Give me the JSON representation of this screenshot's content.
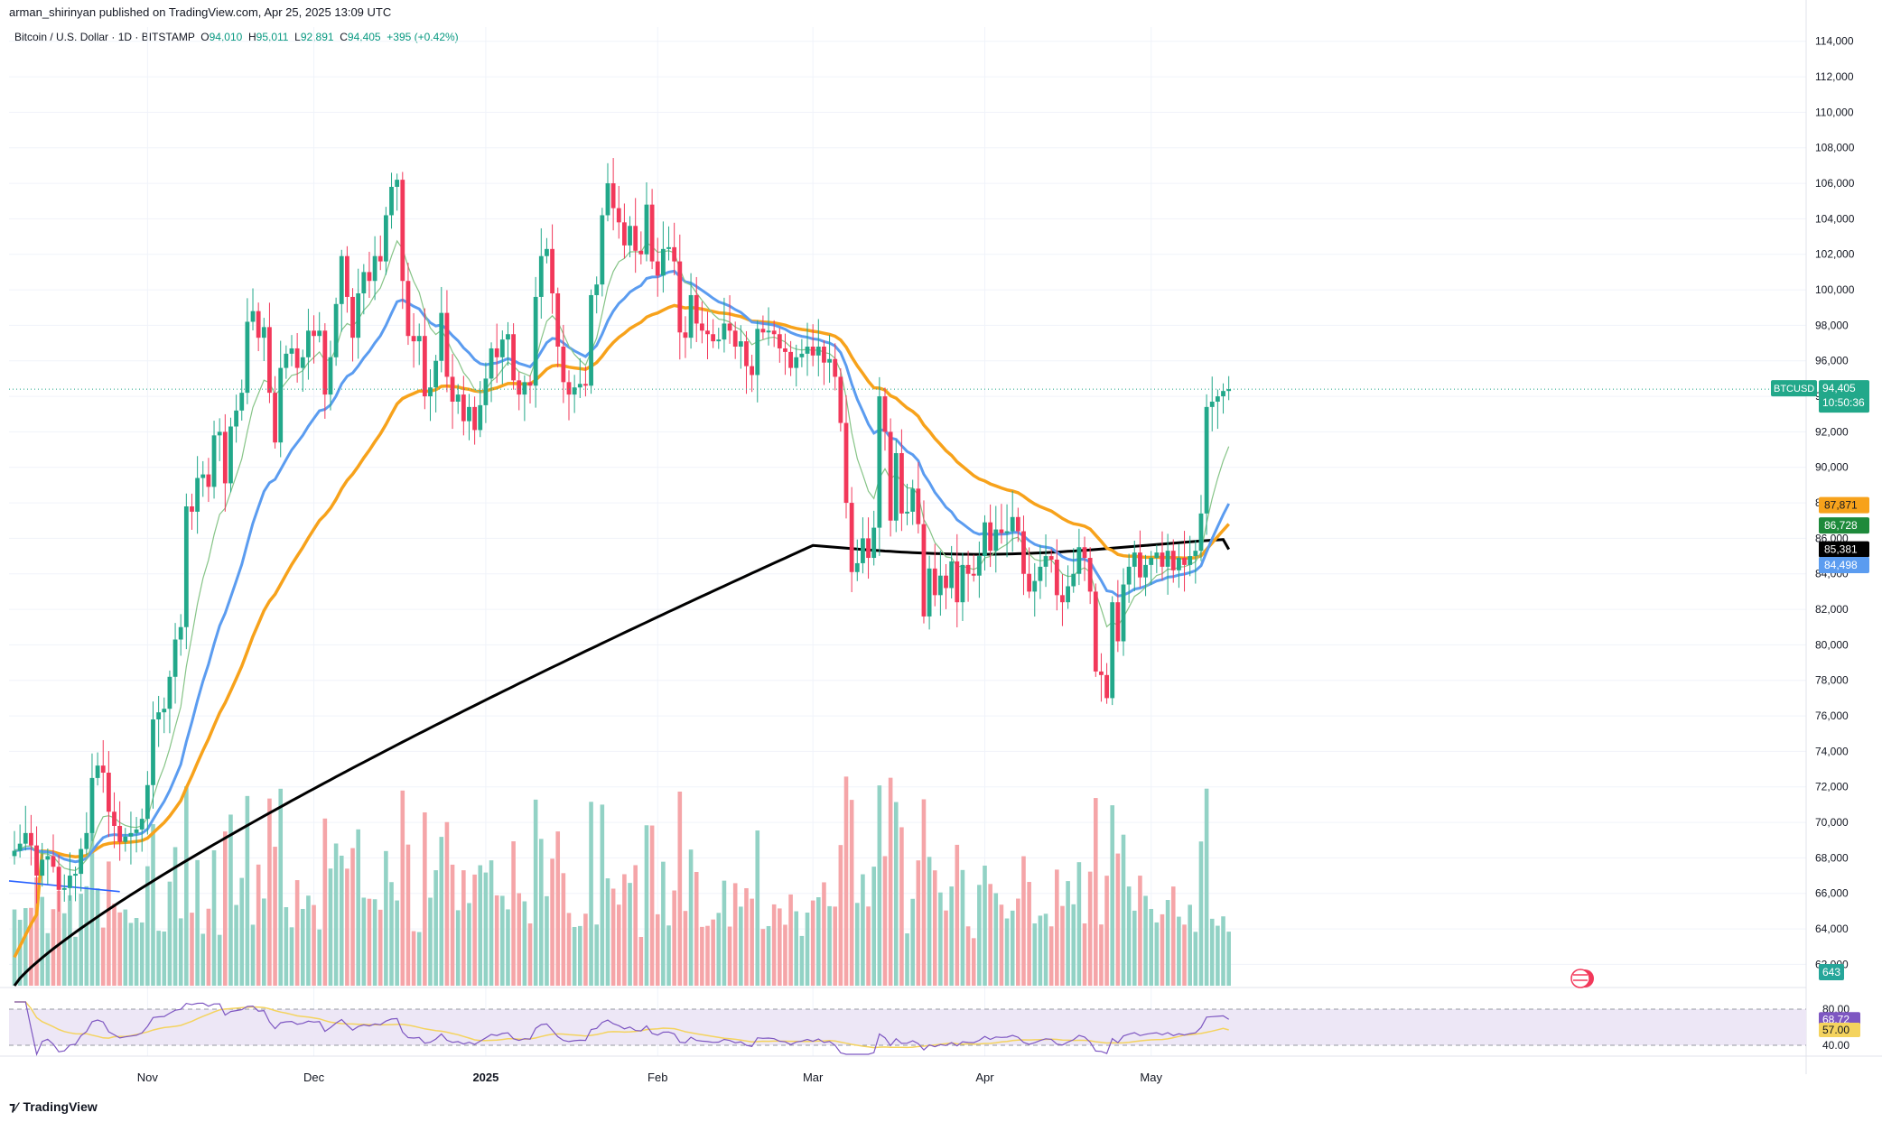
{
  "header": {
    "publisher": "arman_shirinyan published on TradingView.com, Apr 25, 2025 13:09 UTC"
  },
  "symbol_bar": {
    "name": "Bitcoin / U.S. Dollar · 1D · BITSTAMP",
    "open_label": "O",
    "open": "94,010",
    "high_label": "H",
    "high": "95,011",
    "low_label": "L",
    "low": "92,891",
    "close_label": "C",
    "close": "94,405",
    "change": "+395 (+0.42%)"
  },
  "price_tag": {
    "ticker": "BTCUSD",
    "price": "94,405",
    "countdown": "10:50:36"
  },
  "ma_tags": [
    {
      "value": "87,871",
      "color": "#f7a21b",
      "price": 87871
    },
    {
      "value": "86,728",
      "color": "#1e8a3b",
      "price": 86728
    },
    {
      "value": "85,381",
      "color": "#000000",
      "price": 85381
    },
    {
      "value": "84,498",
      "color": "#5b9cf0",
      "price": 84498
    }
  ],
  "volume_tag": "643",
  "rsi": {
    "upper": "80.00",
    "value": "68.72",
    "ma": "57.00",
    "lower": "40.00"
  },
  "branding": "TradingView",
  "colors": {
    "up": "#22a88a",
    "down": "#f2385a",
    "vol_up": "#92d2c5",
    "vol_down": "#f5a5a8",
    "ma_fast": "#86c487",
    "ma_blue": "#5b9cf0",
    "ma_orange": "#f7a21b",
    "ma_black": "#000000",
    "rsi_line": "#7e57c2",
    "rsi_ma": "#f4d35e",
    "rsi_band": "#ede7f6"
  },
  "chart_data": {
    "type": "candlestick",
    "title": "Bitcoin / U.S. Dollar · 1D · BITSTAMP",
    "ylim": [
      60800,
      114800
    ],
    "y_ticks": [
      62000,
      64000,
      66000,
      68000,
      70000,
      72000,
      74000,
      76000,
      78000,
      80000,
      82000,
      84000,
      86000,
      88000,
      90000,
      92000,
      94000,
      96000,
      98000,
      100000,
      102000,
      104000,
      106000,
      108000,
      110000,
      112000,
      114000
    ],
    "y_tick_labels": [
      "62,000",
      "64,000",
      "66,000",
      "68,000",
      "70,000",
      "72,000",
      "74,000",
      "76,000",
      "78,000",
      "80,000",
      "82,000",
      "84,000",
      "86,000",
      "88,000",
      "90,000",
      "92,000",
      "94,000",
      "96,000",
      "98,000",
      "100,000",
      "102,000",
      "104,000",
      "106,000",
      "108,000",
      "110,000",
      "112,000",
      "114,000"
    ],
    "x_labels": [
      {
        "label": "Nov",
        "index": 24
      },
      {
        "label": "Dec",
        "index": 54
      },
      {
        "label": "2025",
        "index": 85
      },
      {
        "label": "Feb",
        "index": 116
      },
      {
        "label": "Mar",
        "index": 144
      },
      {
        "label": "Apr",
        "index": 175
      },
      {
        "label": "May",
        "index": 205
      }
    ],
    "closes": [
      68400,
      68800,
      69400,
      68700,
      67000,
      67900,
      68100,
      67500,
      66200,
      66300,
      67000,
      67100,
      68500,
      69400,
      72500,
      73200,
      72800,
      70600,
      69800,
      68900,
      69200,
      69400,
      69600,
      70200,
      72100,
      75800,
      76200,
      76400,
      78200,
      80300,
      81000,
      87800,
      87500,
      89400,
      89600,
      88900,
      91800,
      92000,
      89100,
      92300,
      93200,
      94200,
      98200,
      98800,
      97300,
      97900,
      94200,
      91400,
      95600,
      96400,
      96700,
      95600,
      96200,
      97700,
      97400,
      97700,
      94100,
      96200,
      99200,
      101900,
      99600,
      97300,
      99800,
      101000,
      100500,
      101900,
      101600,
      104200,
      105800,
      106200,
      100500,
      97400,
      97100,
      97400,
      94000,
      94500,
      96000,
      98700,
      95100,
      93700,
      94100,
      92600,
      93400,
      92100,
      93500,
      95000,
      96700,
      96200,
      97200,
      97500,
      94900,
      94100,
      94800,
      94600,
      99600,
      101900,
      102300,
      99800,
      96800,
      94800,
      94100,
      94500,
      94700,
      94600,
      99700,
      100300,
      104200,
      106000,
      104600,
      103800,
      102500,
      103600,
      102200,
      102000,
      104800,
      101600,
      100800,
      102300,
      102400,
      101600,
      97600,
      97300,
      99700,
      98100,
      97700,
      97500,
      97100,
      97200,
      98100,
      97700,
      96800,
      97100,
      95700,
      95200,
      97800,
      97600,
      97700,
      97500,
      96700,
      96500,
      95600,
      96200,
      96400,
      96800,
      96300,
      96800,
      95900,
      96100,
      95100,
      92500,
      88000,
      84100,
      84600,
      86000,
      84900,
      86600,
      94000,
      92000,
      87000,
      90800,
      87400,
      87500,
      88800,
      86800,
      81600,
      84300,
      82800,
      83900,
      83200,
      84700,
      82400,
      84500,
      84000,
      83900,
      85000,
      86900,
      85300,
      86500,
      86300,
      86400,
      87200,
      86400,
      84000,
      83000,
      83600,
      84400,
      85000,
      84800,
      82800,
      82400,
      83300,
      84000,
      85500,
      84900,
      83000,
      78500,
      78300,
      77000,
      82400,
      80200,
      83400,
      84400,
      85200,
      83800,
      84500,
      84900,
      85200,
      84400,
      85300,
      84200,
      84900,
      84500,
      85000,
      85300,
      87400,
      93400,
      93700,
      94000,
      94300,
      94405
    ],
    "sma_200_black_last": 85381,
    "ma_orange_last": 87871,
    "ma_green_last": 86728,
    "ma_blue_last": 84498,
    "rsi_last": 68.72,
    "rsi_ma_last": 57.0
  }
}
